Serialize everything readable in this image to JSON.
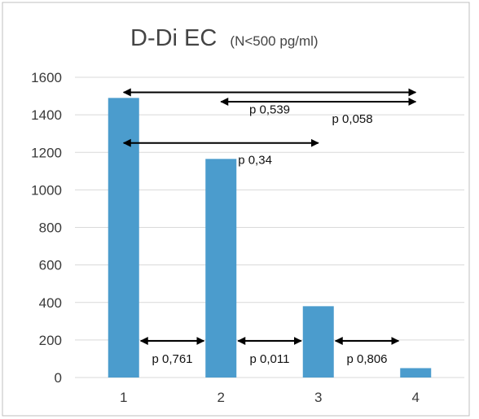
{
  "chart_data": {
    "type": "bar",
    "title": "D-Di EC",
    "subtitle": "(N<500 pg/ml)",
    "xlabel": "",
    "ylabel": "",
    "categories": [
      "1",
      "2",
      "3",
      "4"
    ],
    "values": [
      1490,
      1165,
      380,
      50
    ],
    "ylim": [
      0,
      1600
    ],
    "yticks": [
      0,
      200,
      400,
      600,
      800,
      1000,
      1200,
      1400,
      1600
    ],
    "grid": true,
    "legend": "none",
    "bar_color": "#4b9ccd",
    "gridline_color": "#d9d9d9",
    "annotations": [
      {
        "label": "p 0,539",
        "from": "1",
        "to": "4",
        "level": 1520
      },
      {
        "label": "p 0,058",
        "from": "2",
        "to": "4",
        "level": 1470
      },
      {
        "label": "p 0,34",
        "from": "1",
        "to": "3",
        "level": 1250
      },
      {
        "label": "p 0,761",
        "from": "1",
        "to": "2",
        "level": 195
      },
      {
        "label": "p 0,011",
        "from": "2",
        "to": "3",
        "level": 195
      },
      {
        "label": "p 0,806",
        "from": "3",
        "to": "4",
        "level": 195
      }
    ]
  }
}
